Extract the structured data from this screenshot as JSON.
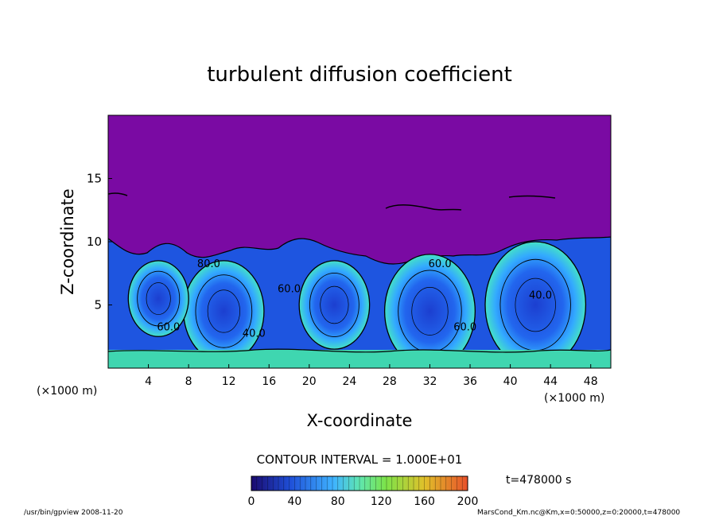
{
  "chart_data": {
    "type": "heatmap",
    "title": "turbulent diffusion coefficient",
    "xlabel": "X-coordinate",
    "ylabel": "Z-coordinate",
    "x_unit_left": "(×1000 m)",
    "x_unit_right": "(×1000 m)",
    "xlim": [
      0,
      50
    ],
    "ylim": [
      0,
      20
    ],
    "x_ticks": [
      4,
      8,
      12,
      16,
      20,
      24,
      28,
      32,
      36,
      40,
      44,
      48
    ],
    "y_ticks": [
      5,
      10,
      15
    ],
    "contour_interval_label": "CONTOUR INTERVAL = 1.000E+01",
    "time_label": "t=478000 s",
    "colorbar": {
      "min": 0,
      "max": 200,
      "ticks": [
        0,
        40,
        80,
        120,
        160,
        200
      ],
      "colors": [
        "#1a0a6e",
        "#1f4fd8",
        "#3fb3ff",
        "#5fe6b0",
        "#7ce34a",
        "#e0c02a",
        "#e8502a"
      ]
    },
    "background_value_color": "#7a0aa3",
    "contour_labels": [
      {
        "text": "40.0",
        "x": 14.5,
        "z": 2.5
      },
      {
        "text": "60.0",
        "x": 33.0,
        "z": 8.0
      },
      {
        "text": "40.0",
        "x": 43.0,
        "z": 5.5
      },
      {
        "text": "60.0",
        "x": 18.0,
        "z": 6.0
      },
      {
        "text": "60.0",
        "x": 6.0,
        "z": 3.0
      },
      {
        "text": "80.0",
        "x": 10.0,
        "z": 8.0
      },
      {
        "text": "60.0",
        "x": 35.5,
        "z": 3.0
      }
    ],
    "vortex_centers": [
      {
        "x": 11.5,
        "z": 4.5,
        "r": 4.0
      },
      {
        "x": 22.5,
        "z": 5.0,
        "r": 3.5
      },
      {
        "x": 32.0,
        "z": 4.5,
        "r": 4.5
      },
      {
        "x": 42.5,
        "z": 5.0,
        "r": 5.0
      },
      {
        "x": 5.0,
        "z": 5.5,
        "r": 3.0
      }
    ]
  },
  "footer": {
    "program": "/usr/bin/gpview   2008-11-20",
    "source": "MarsCond_Km.nc@Km,x=0:50000,z=0:20000,t=478000"
  }
}
